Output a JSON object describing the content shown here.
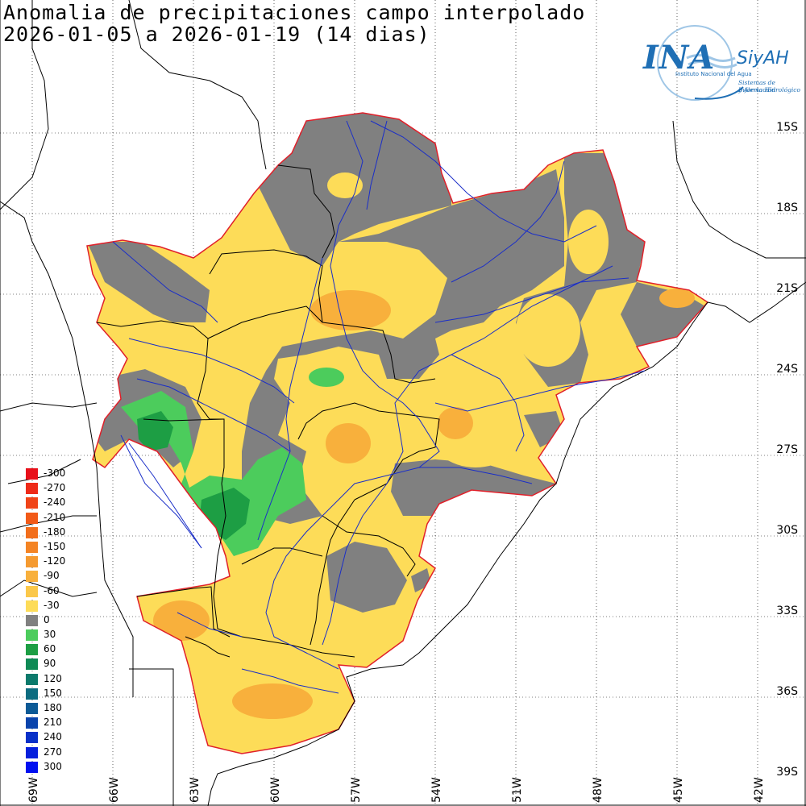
{
  "title": {
    "line1": "Anomalia de precipitaciones campo interpolado",
    "line2": "2026-01-05 a 2026-01-19 (14 dias)"
  },
  "logo": {
    "wordmark": "INA",
    "brand": "SiyAH",
    "line1": "Instituto Nacional del Agua",
    "line2": "Sistemas de Información",
    "line3": "y Alerta Hidrológico",
    "color": "#1f6fb5"
  },
  "latitudes": [
    "15S",
    "18S",
    "21S",
    "24S",
    "27S",
    "30S",
    "33S",
    "36S",
    "39S"
  ],
  "longitudes": [
    "69W",
    "66W",
    "63W",
    "60W",
    "57W",
    "54W",
    "51W",
    "48W",
    "45W",
    "42W"
  ],
  "legend": [
    {
      "label": "-300",
      "color": "#e8101a"
    },
    {
      "label": "-270",
      "color": "#ee2a18"
    },
    {
      "label": "-240",
      "color": "#f04418"
    },
    {
      "label": "-210",
      "color": "#f25a18"
    },
    {
      "label": "-180",
      "color": "#f26e1c"
    },
    {
      "label": "-150",
      "color": "#f48424"
    },
    {
      "label": "-120",
      "color": "#f59a30"
    },
    {
      "label": "-90",
      "color": "#f8b03c"
    },
    {
      "label": "-60",
      "color": "#fbc84a"
    },
    {
      "label": "-30",
      "color": "#fddc58"
    },
    {
      "label": "0",
      "color": "#808080"
    },
    {
      "label": "30",
      "color": "#4ccc5c"
    },
    {
      "label": "60",
      "color": "#1d9e44"
    },
    {
      "label": "90",
      "color": "#0f8a55"
    },
    {
      "label": "120",
      "color": "#0c7a6c"
    },
    {
      "label": "150",
      "color": "#0c6c80"
    },
    {
      "label": "180",
      "color": "#0c5a96"
    },
    {
      "label": "210",
      "color": "#0a44ac"
    },
    {
      "label": "240",
      "color": "#0830c8"
    },
    {
      "label": "270",
      "color": "#0620dc"
    },
    {
      "label": "300",
      "color": "#0010f0"
    }
  ],
  "colors": {
    "basin_outline": "#e0202a",
    "rivers": "#1a2ec8",
    "borders": "#000000",
    "dry": "#fddc58",
    "drier": "#f8b03c",
    "normal": "#808080",
    "wet": "#4ccc5c",
    "wetter": "#1d9e44"
  }
}
